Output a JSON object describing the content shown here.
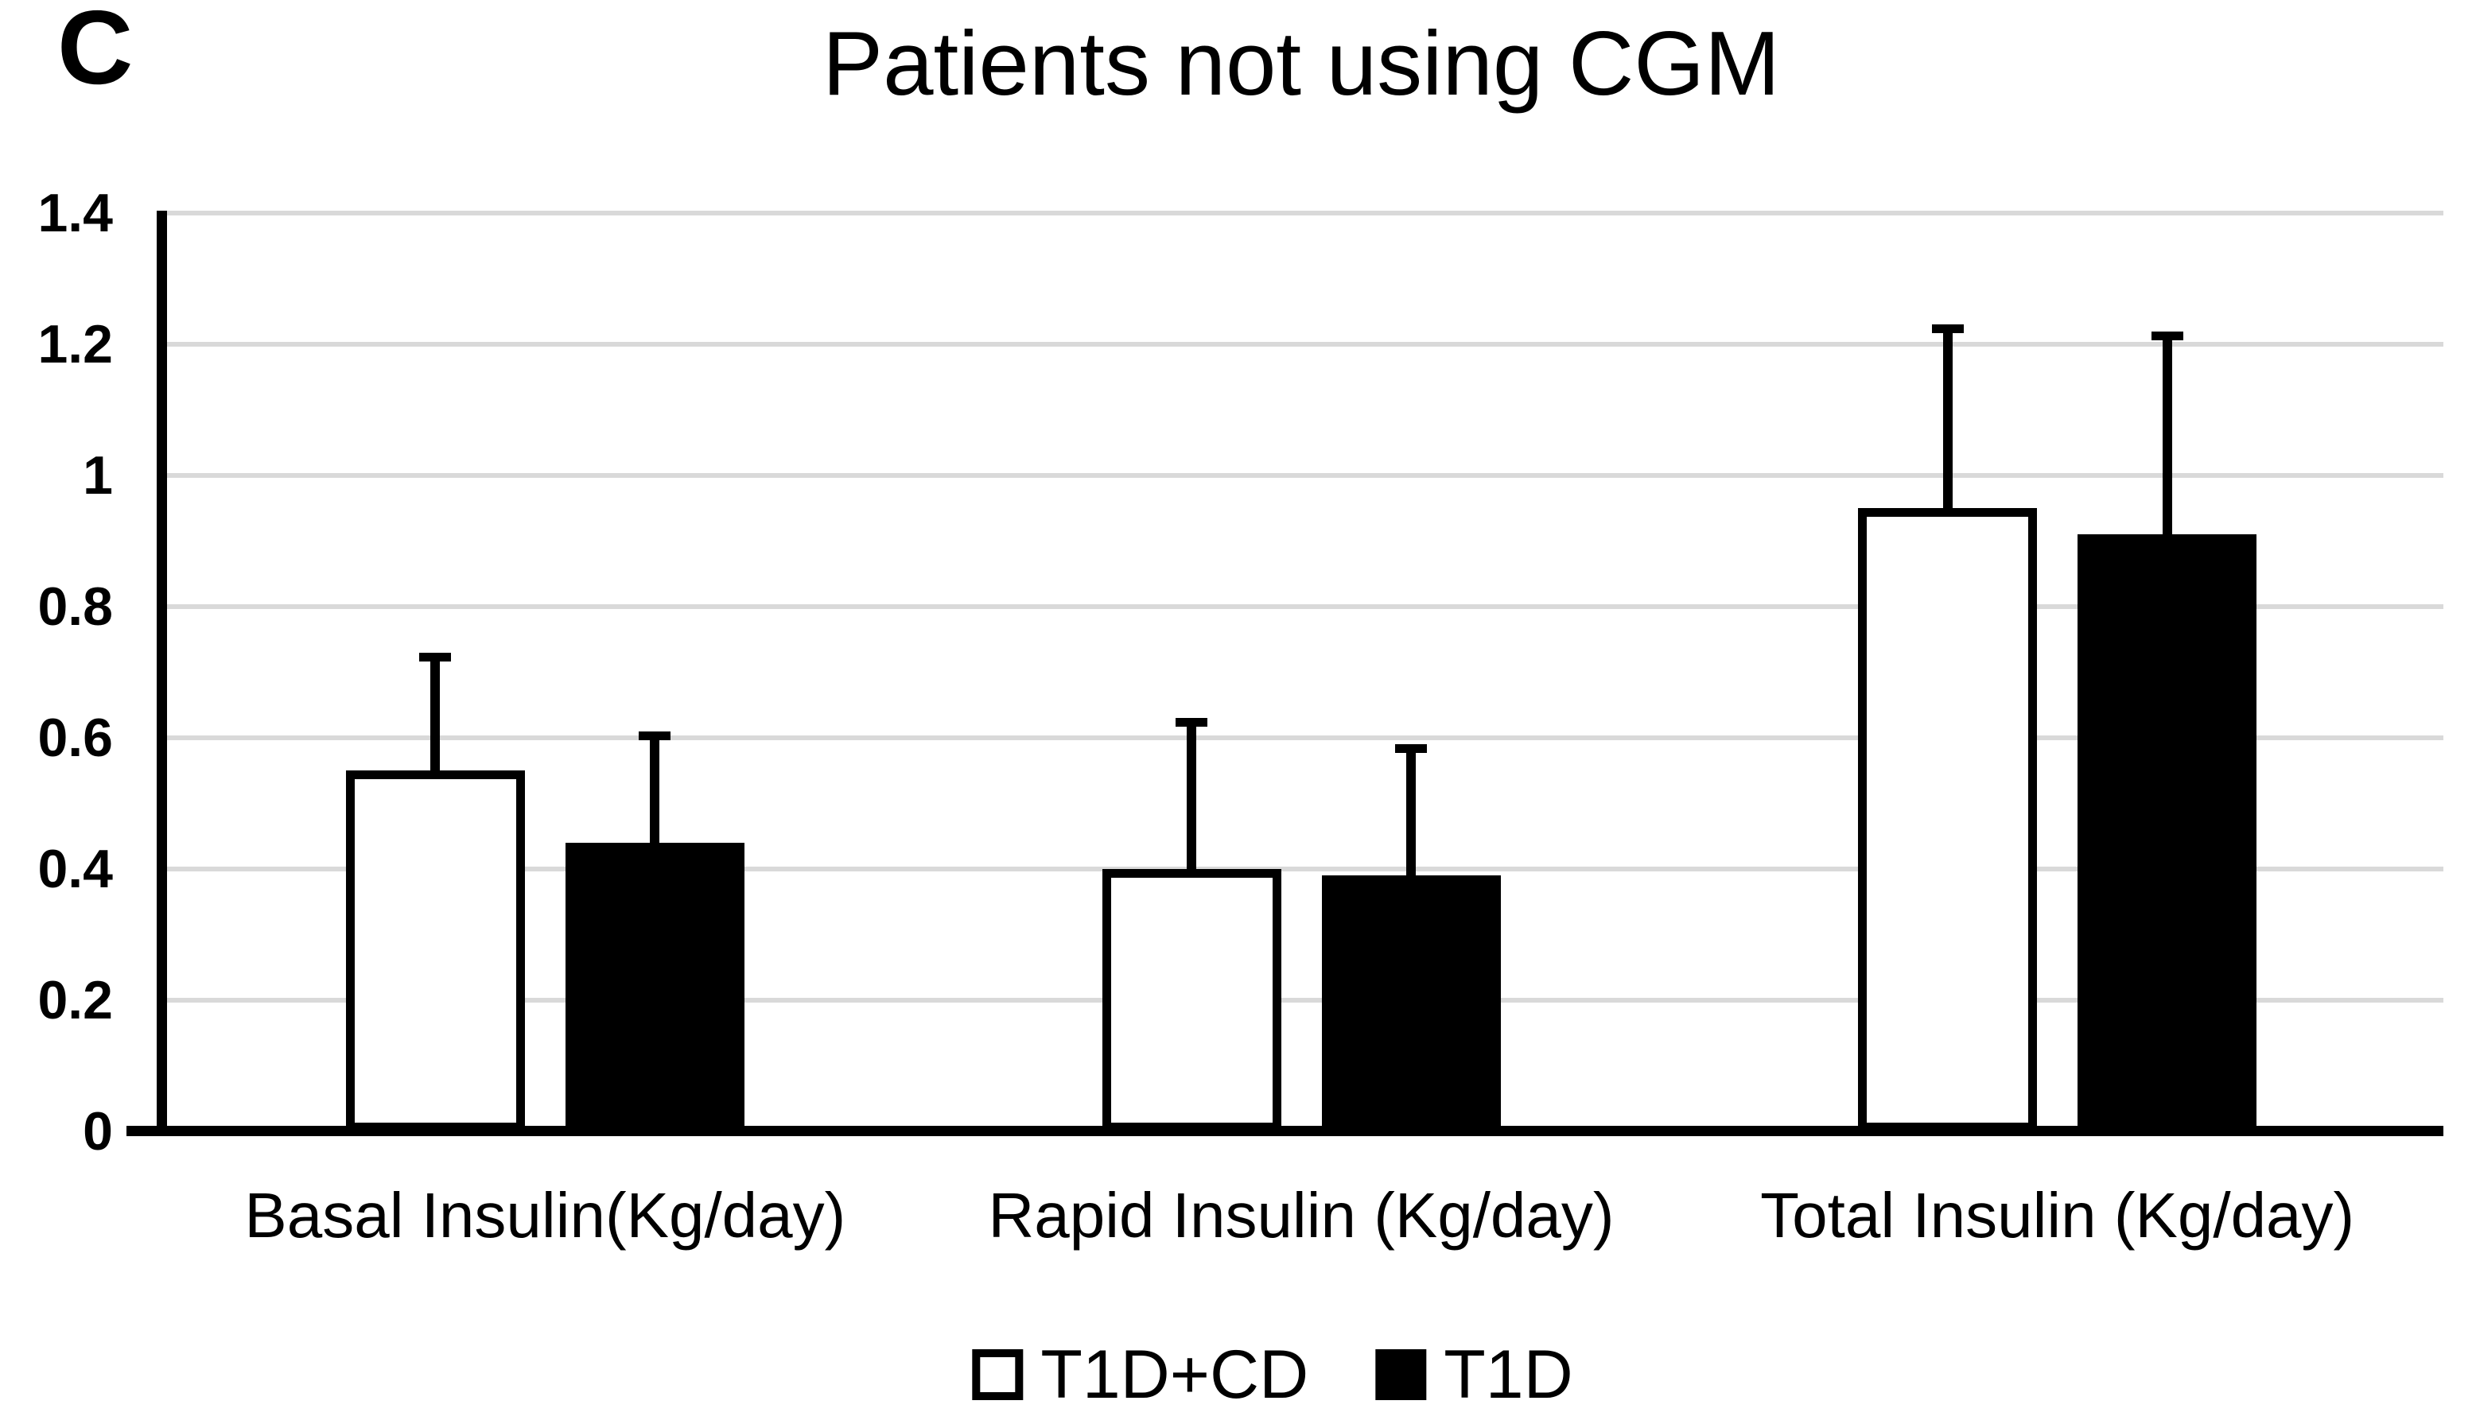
{
  "panel_label": "C",
  "chart_data": {
    "type": "bar",
    "title": "Patients not using CGM",
    "categories": [
      "Basal Insulin(Kg/day)",
      "Rapid Insulin (Kg/day)",
      "Total Insulin (Kg/day)"
    ],
    "series": [
      {
        "name": "T1D+CD",
        "style": "outlined",
        "fill": "#ffffff",
        "border": "#000000",
        "values": [
          0.55,
          0.4,
          0.95
        ],
        "errors_up": [
          0.18,
          0.23,
          0.28
        ]
      },
      {
        "name": "T1D",
        "style": "filled",
        "fill": "#000000",
        "border": "#000000",
        "values": [
          0.44,
          0.39,
          0.91
        ],
        "errors_up": [
          0.17,
          0.2,
          0.31
        ]
      }
    ],
    "ylim": [
      0,
      1.4
    ],
    "yticks": [
      {
        "label": "0",
        "value": 0
      },
      {
        "label": "0.2",
        "value": 0.2
      },
      {
        "label": "0.4",
        "value": 0.4
      },
      {
        "label": "0.6",
        "value": 0.6
      },
      {
        "label": "0.8",
        "value": 0.8
      },
      {
        "label": "1",
        "value": 1
      },
      {
        "label": "1.2",
        "value": 1.2
      },
      {
        "label": "1.4",
        "value": 1.4
      }
    ],
    "xlabel": "",
    "ylabel": "",
    "grid": true,
    "legend_position": "bottom",
    "colors": {
      "gridline": "#d9d9d9",
      "axis": "#000000",
      "background": "#ffffff"
    }
  }
}
